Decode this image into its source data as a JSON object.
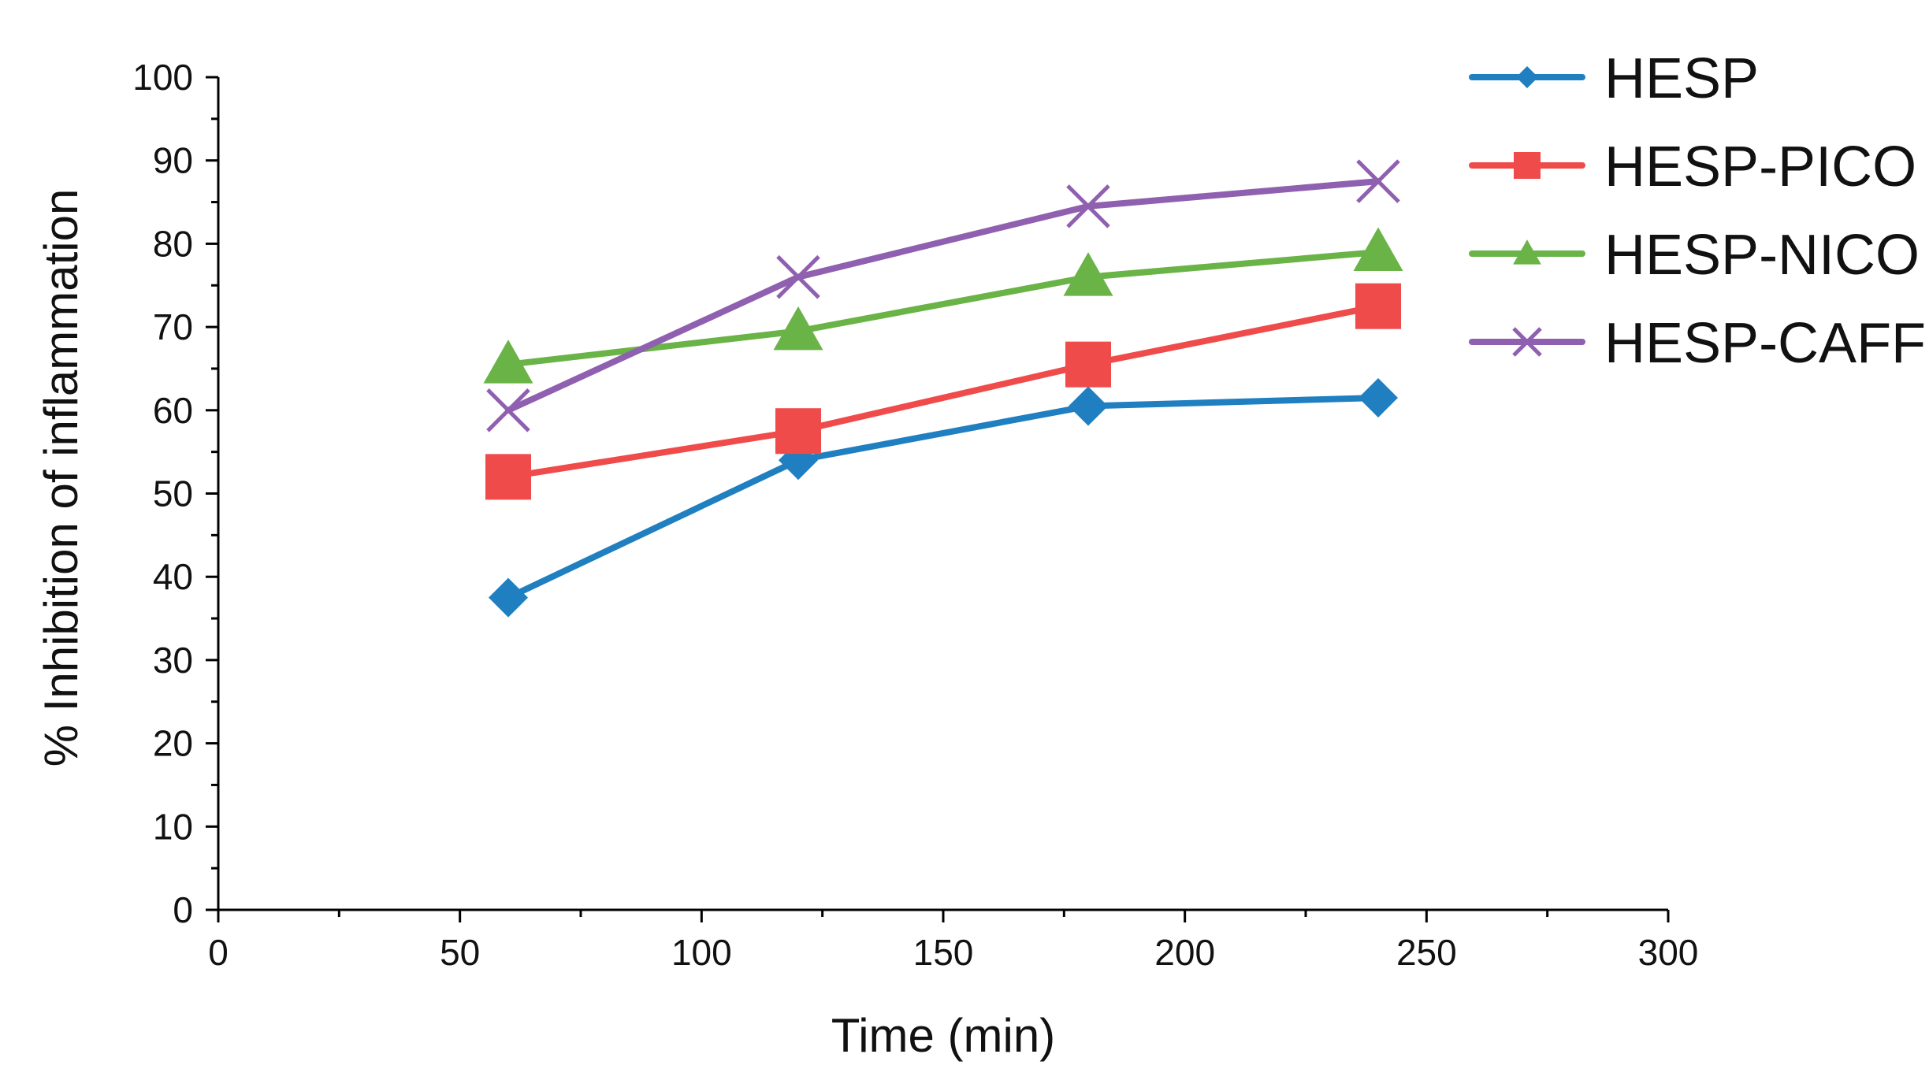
{
  "chart_data": {
    "type": "line",
    "title": "",
    "xlabel": "Time (min)",
    "ylabel": "% Inhibition of inflammation",
    "xlim": [
      0,
      300
    ],
    "ylim": [
      0,
      100
    ],
    "x_ticks": [
      0,
      50,
      100,
      150,
      200,
      250,
      300
    ],
    "y_ticks": [
      0,
      10,
      20,
      30,
      40,
      50,
      60,
      70,
      80,
      90,
      100
    ],
    "x_tick_labels": [
      "0",
      "50",
      "100",
      "150",
      "200",
      "250",
      "300"
    ],
    "y_tick_labels": [
      "0",
      "10",
      "20",
      "30",
      "40",
      "50",
      "60",
      "70",
      "80",
      "90",
      "100"
    ],
    "grid": false,
    "legend_position": "top-right, outside plot area",
    "x": [
      60,
      120,
      180,
      240
    ],
    "series": [
      {
        "name": "HESP",
        "values": [
          37.5,
          54,
          60.5,
          61.5
        ],
        "color": "#1f7fc0",
        "marker": "diamond"
      },
      {
        "name": "HESP-PICO",
        "values": [
          52,
          57.5,
          65.5,
          72.5
        ],
        "color": "#f04b4b",
        "marker": "square"
      },
      {
        "name": "HESP-NICO",
        "values": [
          65.5,
          69.5,
          76,
          79
        ],
        "color": "#6ab347",
        "marker": "triangle"
      },
      {
        "name": "HESP-CAFF",
        "values": [
          60,
          76,
          84.5,
          87.5
        ],
        "color": "#9060b0",
        "marker": "x"
      }
    ]
  }
}
